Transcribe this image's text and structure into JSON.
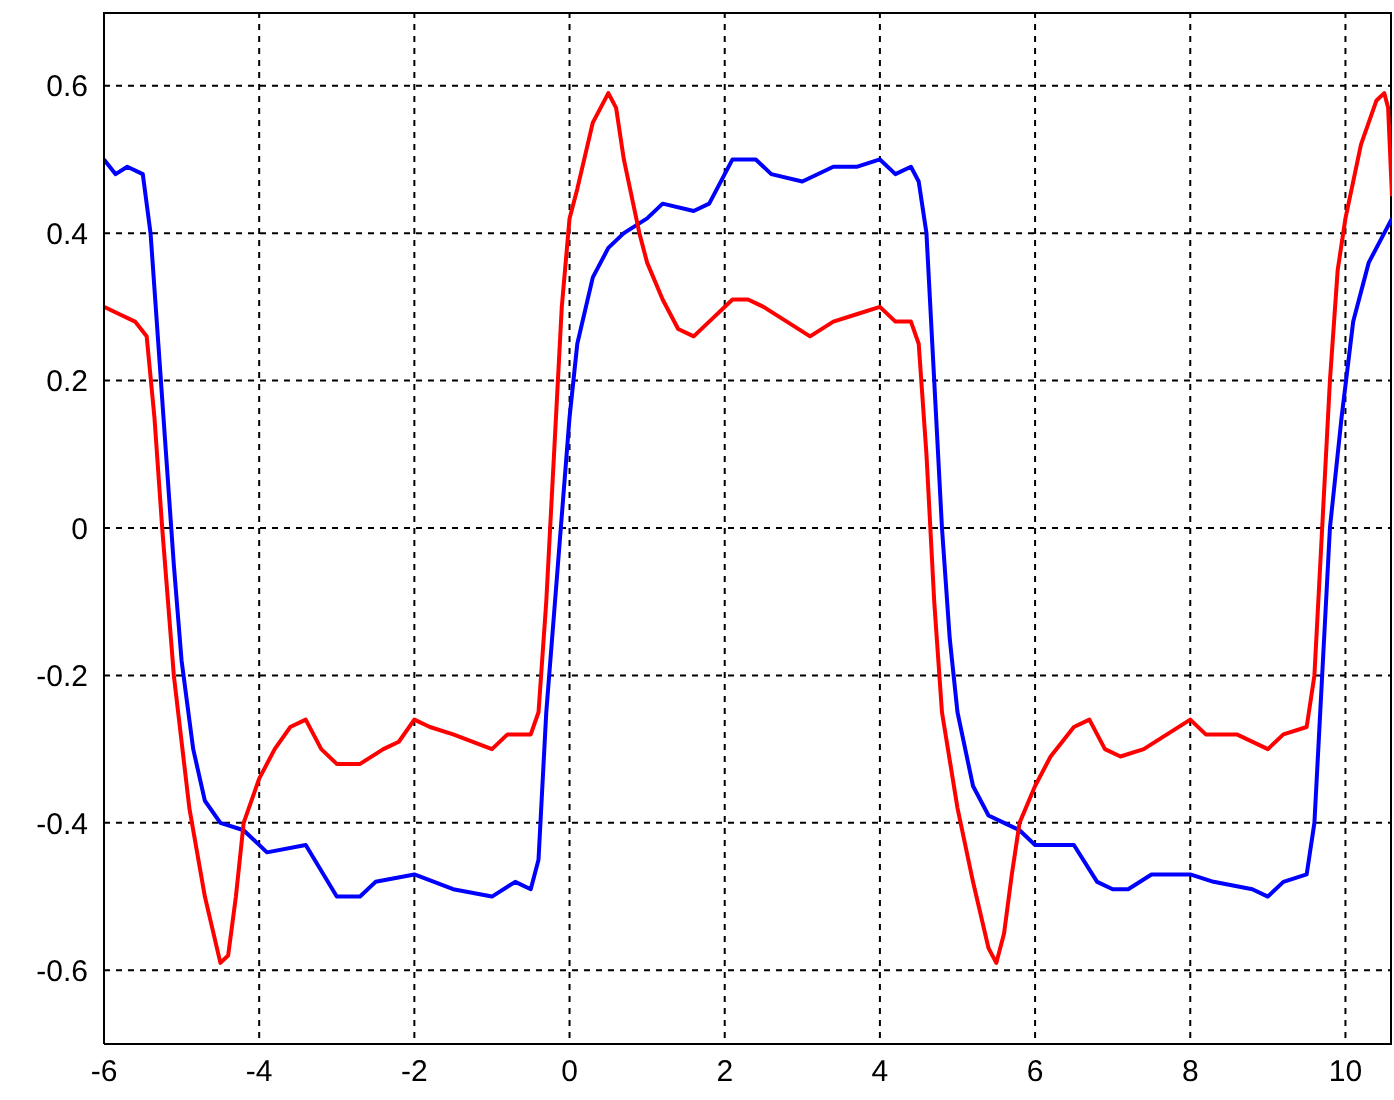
{
  "chart_data": {
    "type": "line",
    "xlim": [
      -6,
      10.6
    ],
    "xticks": [
      -6,
      -4,
      -2,
      0,
      2,
      4,
      6,
      8,
      10
    ],
    "ylim": [
      -0.7,
      0.7
    ],
    "yticks": [
      -0.6,
      -0.4,
      -0.2,
      0,
      0.2,
      0.4,
      0.6
    ],
    "grid": true,
    "marker": "none",
    "line_style": "solid",
    "series": [
      {
        "color": "#0000ff",
        "x": [
          -6,
          -5.85,
          -5.7,
          -5.5,
          -5.4,
          -5.3,
          -5.2,
          -5.1,
          -5,
          -4.85,
          -4.7,
          -4.5,
          -4.2,
          -3.9,
          -3.4,
          -3,
          -2.7,
          -2.5,
          -2,
          -1.5,
          -1,
          -0.7,
          -0.5,
          -0.4,
          -0.3,
          -0.15,
          0,
          0.1,
          0.3,
          0.5,
          0.7,
          1,
          1.2,
          1.6,
          1.8,
          2.1,
          2.4,
          2.6,
          3,
          3.4,
          3.7,
          4,
          4.2,
          4.4,
          4.5,
          4.6,
          4.7,
          4.8,
          4.9,
          5,
          5.2,
          5.4,
          5.6,
          5.8,
          6,
          6.3,
          6.5,
          6.8,
          7,
          7.2,
          7.5,
          8,
          8.3,
          8.8,
          9,
          9.2,
          9.5,
          9.6,
          9.7,
          9.8,
          9.95,
          10.1,
          10.3,
          10.5,
          10.6
        ],
        "values": [
          0.5,
          0.48,
          0.49,
          0.48,
          0.4,
          0.25,
          0.1,
          -0.05,
          -0.18,
          -0.3,
          -0.37,
          -0.4,
          -0.41,
          -0.44,
          -0.43,
          -0.5,
          -0.5,
          -0.48,
          -0.47,
          -0.49,
          -0.5,
          -0.48,
          -0.49,
          -0.45,
          -0.25,
          -0.05,
          0.15,
          0.25,
          0.34,
          0.38,
          0.4,
          0.42,
          0.44,
          0.43,
          0.44,
          0.5,
          0.5,
          0.48,
          0.47,
          0.49,
          0.49,
          0.5,
          0.48,
          0.49,
          0.47,
          0.4,
          0.2,
          0,
          -0.15,
          -0.25,
          -0.35,
          -0.39,
          -0.4,
          -0.41,
          -0.43,
          -0.43,
          -0.43,
          -0.48,
          -0.49,
          -0.49,
          -0.47,
          -0.47,
          -0.48,
          -0.49,
          -0.5,
          -0.48,
          -0.47,
          -0.4,
          -0.2,
          0,
          0.15,
          0.28,
          0.36,
          0.4,
          0.42
        ]
      },
      {
        "color": "#ff0000",
        "x": [
          -6,
          -5.8,
          -5.6,
          -5.45,
          -5.35,
          -5.25,
          -5.1,
          -4.9,
          -4.7,
          -4.5,
          -4.4,
          -4.3,
          -4.2,
          -4,
          -3.8,
          -3.6,
          -3.4,
          -3.2,
          -3,
          -2.7,
          -2.4,
          -2.2,
          -2,
          -1.8,
          -1.5,
          -1,
          -0.8,
          -0.5,
          -0.4,
          -0.3,
          -0.2,
          -0.1,
          0,
          0.1,
          0.3,
          0.5,
          0.6,
          0.7,
          0.9,
          1,
          1.2,
          1.4,
          1.6,
          1.8,
          2.1,
          2.3,
          2.5,
          2.8,
          3.1,
          3.4,
          3.7,
          4,
          4.2,
          4.4,
          4.5,
          4.6,
          4.7,
          4.8,
          5,
          5.2,
          5.4,
          5.5,
          5.6,
          5.7,
          5.8,
          6,
          6.2,
          6.5,
          6.7,
          6.9,
          7.1,
          7.4,
          7.7,
          8,
          8.2,
          8.6,
          9,
          9.2,
          9.5,
          9.6,
          9.7,
          9.8,
          9.9,
          10,
          10.2,
          10.4,
          10.5,
          10.55,
          10.6
        ],
        "values": [
          0.3,
          0.29,
          0.28,
          0.26,
          0.15,
          0,
          -0.2,
          -0.38,
          -0.5,
          -0.59,
          -0.58,
          -0.5,
          -0.4,
          -0.34,
          -0.3,
          -0.27,
          -0.26,
          -0.3,
          -0.32,
          -0.32,
          -0.3,
          -0.29,
          -0.26,
          -0.27,
          -0.28,
          -0.3,
          -0.28,
          -0.28,
          -0.25,
          -0.1,
          0.1,
          0.3,
          0.42,
          0.46,
          0.55,
          0.59,
          0.57,
          0.5,
          0.4,
          0.36,
          0.31,
          0.27,
          0.26,
          0.28,
          0.31,
          0.31,
          0.3,
          0.28,
          0.26,
          0.28,
          0.29,
          0.3,
          0.28,
          0.28,
          0.25,
          0.1,
          -0.1,
          -0.25,
          -0.38,
          -0.48,
          -0.57,
          -0.59,
          -0.55,
          -0.47,
          -0.4,
          -0.35,
          -0.31,
          -0.27,
          -0.26,
          -0.3,
          -0.31,
          -0.3,
          -0.28,
          -0.26,
          -0.28,
          -0.28,
          -0.3,
          -0.28,
          -0.27,
          -0.2,
          0,
          0.2,
          0.35,
          0.42,
          0.52,
          0.58,
          0.59,
          0.57,
          0.45
        ]
      }
    ]
  }
}
